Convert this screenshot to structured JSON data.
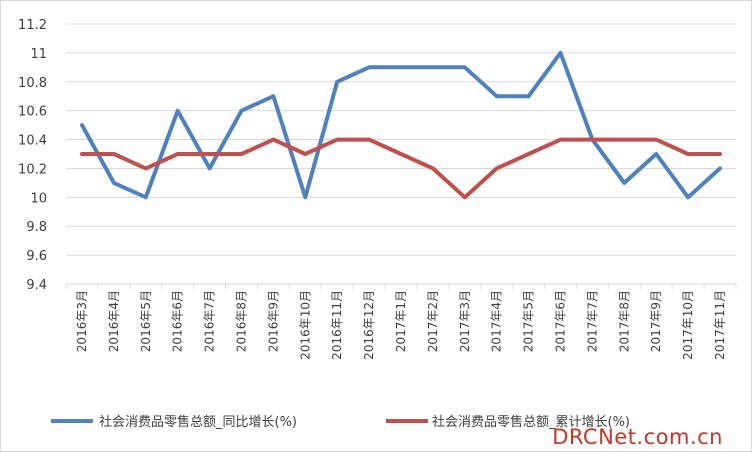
{
  "chart_data": {
    "type": "line",
    "categories": [
      "2016年3月",
      "2016年4月",
      "2016年5月",
      "2016年6月",
      "2016年7月",
      "2016年8月",
      "2016年9月",
      "2016年10月",
      "2016年11月",
      "2016年12月",
      "2017年1月",
      "2017年2月",
      "2017年3月",
      "2017年4月",
      "2017年5月",
      "2017年6月",
      "2017年7月",
      "2017年8月",
      "2017年9月",
      "2017年10月",
      "2017年11月"
    ],
    "series": [
      {
        "name": "社会消费品零售总额_同比增长(%)",
        "color": "#4f81bd",
        "values": [
          10.5,
          10.1,
          10.0,
          10.6,
          10.2,
          10.6,
          10.7,
          10.0,
          10.8,
          10.9,
          10.9,
          10.9,
          10.9,
          10.7,
          10.7,
          11.0,
          10.4,
          10.1,
          10.3,
          10.0,
          10.2
        ]
      },
      {
        "name": "社会消费品零售总额_累计增长(%)",
        "color": "#c0504d",
        "values": [
          10.3,
          10.3,
          10.2,
          10.3,
          10.3,
          10.3,
          10.4,
          10.3,
          10.4,
          10.4,
          10.3,
          10.2,
          10.0,
          10.2,
          10.3,
          10.4,
          10.4,
          10.4,
          10.4,
          10.3,
          10.3
        ]
      }
    ],
    "yticks": [
      "9.4",
      "9.6",
      "9.8",
      "10",
      "10.2",
      "10.4",
      "10.6",
      "10.8",
      "11",
      "11.2"
    ],
    "ylim": [
      9.4,
      11.2
    ],
    "grid": true,
    "legend": "bottom"
  },
  "watermark": "DRCNet.com.cn"
}
